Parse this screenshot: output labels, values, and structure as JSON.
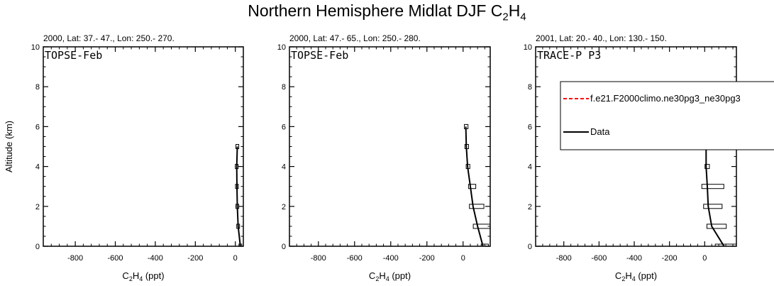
{
  "figure": {
    "title_main": "Northern Hemisphere Midlat DJF C",
    "title_sub1": "2",
    "title_mid": "H",
    "title_sub2": "4"
  },
  "chart_data": [
    {
      "type": "line",
      "subtitle": "2000, Lat: 37.- 47., Lon: 250.- 270.",
      "campaign": "TOPSE-Feb",
      "ylabel": "Altitude (km)",
      "xlabel": "C2H4 (ppt)",
      "xlim": [
        -960,
        40
      ],
      "ylim": [
        0,
        10
      ],
      "xticks": [
        -800,
        -600,
        -400,
        -200,
        0
      ],
      "yticks": [
        0,
        2,
        4,
        6,
        8,
        10
      ],
      "series": [
        {
          "name": "Data",
          "color": "#000000",
          "points": [
            [
              25,
              0
            ],
            [
              14,
              1
            ],
            [
              10,
              2
            ],
            [
              8,
              3
            ],
            [
              7,
              4
            ],
            [
              10,
              5
            ]
          ],
          "boxes": [
            [
              25,
              1,
              0,
              0
            ],
            [
              14,
              2,
              0,
              0
            ],
            [
              10,
              2,
              0,
              0
            ],
            [
              8,
              3,
              0,
              0
            ],
            [
              7,
              5,
              0,
              0
            ],
            [
              10,
              10,
              0,
              0
            ]
          ]
        }
      ]
    },
    {
      "type": "line",
      "subtitle": "2000, Lat: 47.- 65., Lon: 250.- 280.",
      "campaign": "TOPSE-Feb",
      "ylabel": "",
      "xlabel": "C2H4 (ppt)",
      "xlim": [
        -960,
        150
      ],
      "ylim": [
        0,
        10
      ],
      "xticks": [
        -800,
        -600,
        -400,
        -200,
        0
      ],
      "yticks": [
        0,
        2,
        4,
        6,
        8,
        10
      ],
      "series": [
        {
          "name": "Data",
          "color": "#000000",
          "points": [
            [
              110,
              0
            ],
            [
              80,
              1
            ],
            [
              55,
              2
            ],
            [
              40,
              3
            ],
            [
              25,
              4
            ],
            [
              18,
              5
            ],
            [
              15,
              6
            ]
          ],
          "boxes": [
            [
              110,
              40,
              0,
              0
            ],
            [
              80,
              95,
              0,
              0
            ],
            [
              55,
              80,
              0,
              0
            ],
            [
              40,
              40,
              0,
              0
            ],
            [
              25,
              20,
              0,
              0
            ],
            [
              18,
              20,
              0,
              0
            ],
            [
              15,
              20,
              0,
              0
            ]
          ]
        }
      ]
    },
    {
      "type": "line",
      "subtitle": "2001, Lat: 20.- 40., Lon: 130.- 150.",
      "campaign": "TRACE-P P3",
      "ylabel": "",
      "xlabel": "C2H4 (ppt)",
      "xlim": [
        -960,
        180
      ],
      "ylim": [
        0,
        10
      ],
      "xticks": [
        -800,
        -600,
        -400,
        -200,
        0
      ],
      "yticks": [
        0,
        2,
        4,
        6,
        8,
        10
      ],
      "legend": {
        "placement": "top-right",
        "entries": [
          {
            "label": "f.e21.F2000climo.ne30pg3_ne30pg3",
            "color": "#ff0000",
            "dash": true
          },
          {
            "label": "Data",
            "color": "#000000",
            "dash": false
          }
        ]
      },
      "series": [
        {
          "name": "Data",
          "color": "#000000",
          "points": [
            [
              110,
              0
            ],
            [
              40,
              1
            ],
            [
              20,
              2
            ],
            [
              15,
              3
            ],
            [
              8,
              4
            ],
            [
              8,
              5
            ]
          ],
          "boxes": [
            [
              110,
              200,
              0,
              0
            ],
            [
              40,
              110,
              0,
              0
            ],
            [
              20,
              105,
              0,
              0
            ],
            [
              15,
              125,
              0,
              0
            ],
            [
              8,
              25,
              0,
              0
            ],
            [
              8,
              25,
              0,
              0
            ]
          ]
        }
      ]
    }
  ]
}
